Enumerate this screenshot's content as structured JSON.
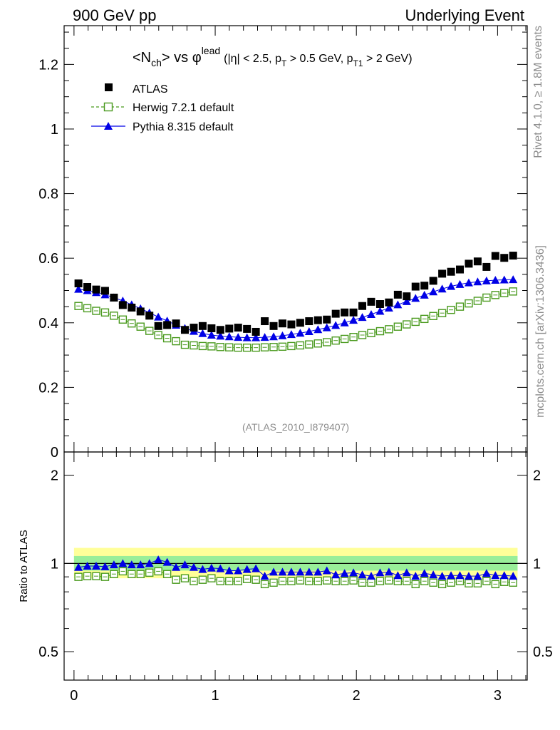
{
  "header": {
    "left": "900 GeV pp",
    "right": "Underlying Event"
  },
  "side": {
    "rivet": "Rivet 4.1.0, ≥ 1.8M events",
    "mcplots": "mcplots.cern.ch [arXiv:1306.3436]"
  },
  "plot_title": {
    "main": "<N",
    "main_sub": "ch",
    "main_vs": "> vs φ",
    "main_sup": "lead",
    "cuts_a": "(|η| < 2.5, p",
    "cuts_sub1": "T",
    "cuts_b": " > 0.5 GeV, p",
    "cuts_sub2": "T1",
    "cuts_c": " > 2 GeV)"
  },
  "analysis_tag": "(ATLAS_2010_I879407)",
  "ratio_ylabel": "Ratio to ATLAS",
  "colors": {
    "atlas": "#000000",
    "herwig": "#4a9a1e",
    "pythia": "#0000e6",
    "band_inner": "#99ee99",
    "band_outer": "#ffff99"
  },
  "chart_data": {
    "type": "scatter",
    "x": [
      0.0314,
      0.0942,
      0.1571,
      0.2199,
      0.2827,
      0.3456,
      0.4084,
      0.4712,
      0.5341,
      0.5969,
      0.6597,
      0.7226,
      0.7854,
      0.8482,
      0.9111,
      0.9739,
      1.0367,
      1.0996,
      1.1624,
      1.2252,
      1.2881,
      1.3509,
      1.4137,
      1.4765,
      1.5394,
      1.6022,
      1.665,
      1.7279,
      1.7907,
      1.8535,
      1.9164,
      1.9792,
      2.042,
      2.1049,
      2.1677,
      2.2305,
      2.2934,
      2.3562,
      2.419,
      2.4819,
      2.5447,
      2.6075,
      2.6704,
      2.7332,
      2.796,
      2.8588,
      2.9217,
      2.9845,
      3.0473,
      3.1102
    ],
    "series": [
      {
        "name": "ATLAS",
        "marker": "filled-square",
        "values": [
          0.522,
          0.511,
          0.503,
          0.499,
          0.478,
          0.455,
          0.447,
          0.435,
          0.422,
          0.39,
          0.393,
          0.398,
          0.378,
          0.385,
          0.39,
          0.383,
          0.378,
          0.382,
          0.385,
          0.381,
          0.372,
          0.405,
          0.39,
          0.398,
          0.395,
          0.4,
          0.405,
          0.408,
          0.41,
          0.428,
          0.432,
          0.432,
          0.452,
          0.465,
          0.458,
          0.463,
          0.487,
          0.482,
          0.512,
          0.515,
          0.53,
          0.552,
          0.558,
          0.565,
          0.583,
          0.59,
          0.573,
          0.607,
          0.601,
          0.608
        ]
      },
      {
        "name": "Herwig 7.2.1 default",
        "marker": "open-square",
        "line": "dashed",
        "values": [
          0.452,
          0.445,
          0.437,
          0.432,
          0.422,
          0.41,
          0.398,
          0.388,
          0.375,
          0.362,
          0.352,
          0.343,
          0.332,
          0.33,
          0.328,
          0.327,
          0.325,
          0.324,
          0.323,
          0.323,
          0.323,
          0.324,
          0.325,
          0.326,
          0.328,
          0.33,
          0.333,
          0.336,
          0.34,
          0.345,
          0.35,
          0.356,
          0.362,
          0.368,
          0.374,
          0.38,
          0.388,
          0.395,
          0.403,
          0.412,
          0.421,
          0.43,
          0.44,
          0.45,
          0.46,
          0.468,
          0.478,
          0.486,
          0.492,
          0.497
        ]
      },
      {
        "name": "Pythia 8.315 default",
        "marker": "filled-triangle",
        "line": "solid",
        "values": [
          0.504,
          0.5,
          0.494,
          0.487,
          0.478,
          0.468,
          0.456,
          0.444,
          0.431,
          0.418,
          0.406,
          0.393,
          0.383,
          0.374,
          0.367,
          0.362,
          0.359,
          0.357,
          0.355,
          0.354,
          0.354,
          0.355,
          0.357,
          0.36,
          0.364,
          0.368,
          0.373,
          0.379,
          0.385,
          0.392,
          0.4,
          0.408,
          0.417,
          0.426,
          0.436,
          0.446,
          0.456,
          0.466,
          0.476,
          0.486,
          0.496,
          0.505,
          0.513,
          0.519,
          0.524,
          0.527,
          0.53,
          0.532,
          0.533,
          0.534
        ]
      }
    ],
    "ratio_series": [
      {
        "name": "Herwig 7.2.1 default",
        "values": [
          0.9,
          0.905,
          0.905,
          0.9,
          0.92,
          0.94,
          0.92,
          0.92,
          0.93,
          0.94,
          0.92,
          0.88,
          0.89,
          0.87,
          0.88,
          0.89,
          0.87,
          0.87,
          0.87,
          0.885,
          0.88,
          0.85,
          0.86,
          0.87,
          0.87,
          0.875,
          0.87,
          0.87,
          0.875,
          0.87,
          0.87,
          0.875,
          0.86,
          0.86,
          0.87,
          0.875,
          0.87,
          0.87,
          0.85,
          0.87,
          0.86,
          0.85,
          0.86,
          0.87,
          0.855,
          0.855,
          0.87,
          0.85,
          0.865,
          0.86
        ]
      },
      {
        "name": "Pythia 8.315 default",
        "values": [
          0.97,
          0.98,
          0.98,
          0.975,
          0.99,
          1.0,
          0.99,
          0.99,
          1.0,
          1.03,
          1.01,
          0.97,
          0.99,
          0.97,
          0.955,
          0.965,
          0.96,
          0.945,
          0.945,
          0.955,
          0.96,
          0.905,
          0.935,
          0.935,
          0.935,
          0.935,
          0.935,
          0.935,
          0.945,
          0.915,
          0.925,
          0.93,
          0.915,
          0.905,
          0.93,
          0.935,
          0.91,
          0.93,
          0.905,
          0.925,
          0.915,
          0.905,
          0.91,
          0.91,
          0.905,
          0.905,
          0.925,
          0.91,
          0.91,
          0.905
        ]
      }
    ],
    "main_axis": {
      "xlim": [
        -0.07,
        3.21
      ],
      "ylim": [
        0,
        1.32
      ],
      "yticks": [
        "0",
        "0.2",
        "0.4",
        "0.6",
        "0.8",
        "1",
        "1.2"
      ]
    },
    "ratio_axis": {
      "ylim": [
        0.4,
        2.4
      ],
      "yscale": "log",
      "yticks": [
        "0.5",
        "1",
        "2"
      ]
    },
    "xticks": [
      "0",
      "1",
      "2",
      "3"
    ],
    "legend": [
      "ATLAS",
      "Herwig 7.2.1 default",
      "Pythia 8.315 default"
    ],
    "legend_position": "top-left"
  }
}
